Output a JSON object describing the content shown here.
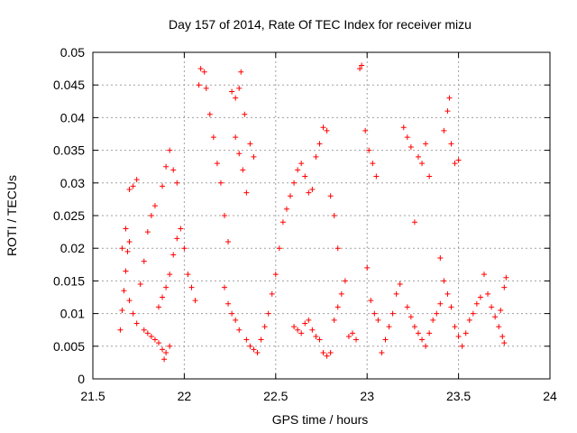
{
  "chart_data": {
    "type": "scatter",
    "title": "Day 157 of 2014, Rate Of TEC Index for receiver mizu",
    "xlabel": "GPS time / hours",
    "ylabel": "ROTI / TECUs",
    "xlim": [
      21.5,
      24
    ],
    "ylim": [
      0,
      0.05
    ],
    "xticks": [
      {
        "value": 21.5,
        "label": "21.5"
      },
      {
        "value": 22,
        "label": "22"
      },
      {
        "value": 22.5,
        "label": "22.5"
      },
      {
        "value": 23,
        "label": "23"
      },
      {
        "value": 23.5,
        "label": "23.5"
      },
      {
        "value": 24,
        "label": "24"
      }
    ],
    "yticks": [
      {
        "value": 0,
        "label": "0"
      },
      {
        "value": 0.005,
        "label": "0.005"
      },
      {
        "value": 0.01,
        "label": "0.01"
      },
      {
        "value": 0.015,
        "label": "0.015"
      },
      {
        "value": 0.02,
        "label": "0.02"
      },
      {
        "value": 0.025,
        "label": "0.025"
      },
      {
        "value": 0.03,
        "label": "0.03"
      },
      {
        "value": 0.035,
        "label": "0.035"
      },
      {
        "value": 0.04,
        "label": "0.04"
      },
      {
        "value": 0.045,
        "label": "0.045"
      },
      {
        "value": 0.05,
        "label": "0.05"
      }
    ],
    "grid": true,
    "marker": "plus",
    "series": [
      {
        "name": "ROTI",
        "color": "#ff0000",
        "points": [
          [
            21.65,
            0.0075
          ],
          [
            21.66,
            0.0105
          ],
          [
            21.67,
            0.0135
          ],
          [
            21.68,
            0.0165
          ],
          [
            21.69,
            0.0195
          ],
          [
            21.7,
            0.021
          ],
          [
            21.66,
            0.02
          ],
          [
            21.68,
            0.023
          ],
          [
            21.7,
            0.029
          ],
          [
            21.72,
            0.0295
          ],
          [
            21.74,
            0.0305
          ],
          [
            21.7,
            0.012
          ],
          [
            21.72,
            0.01
          ],
          [
            21.74,
            0.0085
          ],
          [
            21.76,
            0.0145
          ],
          [
            21.78,
            0.018
          ],
          [
            21.8,
            0.0225
          ],
          [
            21.82,
            0.025
          ],
          [
            21.84,
            0.0265
          ],
          [
            21.78,
            0.0075
          ],
          [
            21.8,
            0.007
          ],
          [
            21.82,
            0.0065
          ],
          [
            21.84,
            0.006
          ],
          [
            21.86,
            0.0055
          ],
          [
            21.88,
            0.0045
          ],
          [
            21.89,
            0.003
          ],
          [
            21.9,
            0.004
          ],
          [
            21.92,
            0.005
          ],
          [
            21.86,
            0.011
          ],
          [
            21.88,
            0.0125
          ],
          [
            21.9,
            0.014
          ],
          [
            21.92,
            0.016
          ],
          [
            21.94,
            0.019
          ],
          [
            21.96,
            0.0215
          ],
          [
            21.88,
            0.0295
          ],
          [
            21.9,
            0.0325
          ],
          [
            21.92,
            0.035
          ],
          [
            21.94,
            0.032
          ],
          [
            21.96,
            0.03
          ],
          [
            21.98,
            0.023
          ],
          [
            22.0,
            0.02
          ],
          [
            22.02,
            0.016
          ],
          [
            22.04,
            0.014
          ],
          [
            22.06,
            0.012
          ],
          [
            22.08,
            0.045
          ],
          [
            22.09,
            0.0475
          ],
          [
            22.11,
            0.047
          ],
          [
            22.12,
            0.0445
          ],
          [
            22.14,
            0.0405
          ],
          [
            22.16,
            0.037
          ],
          [
            22.18,
            0.033
          ],
          [
            22.2,
            0.03
          ],
          [
            22.22,
            0.025
          ],
          [
            22.24,
            0.021
          ],
          [
            22.26,
            0.044
          ],
          [
            22.28,
            0.037
          ],
          [
            22.3,
            0.0345
          ],
          [
            22.32,
            0.032
          ],
          [
            22.34,
            0.0285
          ],
          [
            22.28,
            0.043
          ],
          [
            22.3,
            0.0445
          ],
          [
            22.31,
            0.047
          ],
          [
            22.33,
            0.0405
          ],
          [
            22.36,
            0.036
          ],
          [
            22.38,
            0.034
          ],
          [
            22.22,
            0.014
          ],
          [
            22.24,
            0.0115
          ],
          [
            22.26,
            0.01
          ],
          [
            22.28,
            0.009
          ],
          [
            22.3,
            0.0075
          ],
          [
            22.34,
            0.006
          ],
          [
            22.36,
            0.005
          ],
          [
            22.38,
            0.0045
          ],
          [
            22.4,
            0.004
          ],
          [
            22.42,
            0.006
          ],
          [
            22.44,
            0.008
          ],
          [
            22.46,
            0.01
          ],
          [
            22.48,
            0.013
          ],
          [
            22.5,
            0.016
          ],
          [
            22.52,
            0.02
          ],
          [
            22.54,
            0.024
          ],
          [
            22.56,
            0.026
          ],
          [
            22.58,
            0.028
          ],
          [
            22.6,
            0.03
          ],
          [
            22.62,
            0.032
          ],
          [
            22.64,
            0.033
          ],
          [
            22.66,
            0.031
          ],
          [
            22.68,
            0.0285
          ],
          [
            22.7,
            0.029
          ],
          [
            22.72,
            0.034
          ],
          [
            22.74,
            0.036
          ],
          [
            22.76,
            0.0385
          ],
          [
            22.78,
            0.038
          ],
          [
            22.8,
            0.028
          ],
          [
            22.82,
            0.025
          ],
          [
            22.84,
            0.02
          ],
          [
            22.6,
            0.008
          ],
          [
            22.62,
            0.0075
          ],
          [
            22.64,
            0.007
          ],
          [
            22.66,
            0.0085
          ],
          [
            22.68,
            0.009
          ],
          [
            22.7,
            0.0075
          ],
          [
            22.72,
            0.0065
          ],
          [
            22.74,
            0.006
          ],
          [
            22.76,
            0.004
          ],
          [
            22.78,
            0.0035
          ],
          [
            22.8,
            0.004
          ],
          [
            22.82,
            0.009
          ],
          [
            22.84,
            0.011
          ],
          [
            22.86,
            0.013
          ],
          [
            22.88,
            0.015
          ],
          [
            22.9,
            0.0065
          ],
          [
            22.92,
            0.007
          ],
          [
            22.94,
            0.006
          ],
          [
            22.96,
            0.0475
          ],
          [
            22.97,
            0.048
          ],
          [
            22.99,
            0.038
          ],
          [
            23.01,
            0.035
          ],
          [
            23.03,
            0.033
          ],
          [
            23.05,
            0.031
          ],
          [
            23.0,
            0.017
          ],
          [
            23.02,
            0.012
          ],
          [
            23.04,
            0.01
          ],
          [
            23.06,
            0.009
          ],
          [
            23.08,
            0.004
          ],
          [
            23.1,
            0.006
          ],
          [
            23.12,
            0.008
          ],
          [
            23.14,
            0.01
          ],
          [
            23.16,
            0.013
          ],
          [
            23.18,
            0.0145
          ],
          [
            23.2,
            0.0385
          ],
          [
            23.22,
            0.037
          ],
          [
            23.24,
            0.0355
          ],
          [
            23.26,
            0.024
          ],
          [
            23.28,
            0.034
          ],
          [
            23.3,
            0.033
          ],
          [
            23.32,
            0.036
          ],
          [
            23.34,
            0.031
          ],
          [
            23.22,
            0.011
          ],
          [
            23.24,
            0.0095
          ],
          [
            23.26,
            0.008
          ],
          [
            23.28,
            0.007
          ],
          [
            23.3,
            0.006
          ],
          [
            23.32,
            0.005
          ],
          [
            23.34,
            0.007
          ],
          [
            23.36,
            0.009
          ],
          [
            23.38,
            0.01
          ],
          [
            23.4,
            0.0115
          ],
          [
            23.42,
            0.038
          ],
          [
            23.44,
            0.041
          ],
          [
            23.45,
            0.043
          ],
          [
            23.46,
            0.036
          ],
          [
            23.48,
            0.033
          ],
          [
            23.5,
            0.0335
          ],
          [
            23.4,
            0.0185
          ],
          [
            23.42,
            0.015
          ],
          [
            23.44,
            0.013
          ],
          [
            23.46,
            0.011
          ],
          [
            23.48,
            0.008
          ],
          [
            23.5,
            0.0065
          ],
          [
            23.52,
            0.005
          ],
          [
            23.54,
            0.007
          ],
          [
            23.56,
            0.009
          ],
          [
            23.58,
            0.01
          ],
          [
            23.6,
            0.0115
          ],
          [
            23.62,
            0.0125
          ],
          [
            23.64,
            0.016
          ],
          [
            23.66,
            0.013
          ],
          [
            23.68,
            0.011
          ],
          [
            23.7,
            0.0095
          ],
          [
            23.72,
            0.008
          ],
          [
            23.74,
            0.0065
          ],
          [
            23.75,
            0.0055
          ],
          [
            23.76,
            0.0155
          ],
          [
            23.75,
            0.014
          ],
          [
            23.73,
            0.0105
          ]
        ]
      }
    ]
  }
}
